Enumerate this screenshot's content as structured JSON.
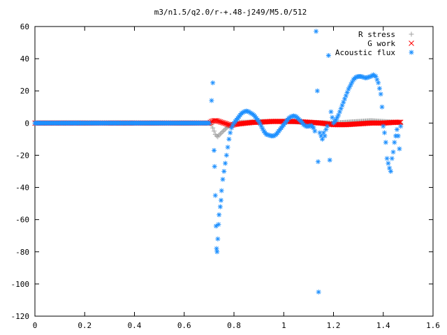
{
  "chart_data": {
    "type": "scatter",
    "title": "m3/n1.5/q2.0/r-+.48-j249/M5.0/512",
    "xlabel": "",
    "ylabel": "",
    "xlim": [
      0,
      1.6
    ],
    "ylim": [
      -120,
      60
    ],
    "xticks": [
      "0",
      "0.2",
      "0.4",
      "0.6",
      "0.8",
      "1",
      "1.2",
      "1.4",
      "1.6"
    ],
    "yticks": [
      "60",
      "40",
      "20",
      "0",
      "-20",
      "-40",
      "-60",
      "-80",
      "-100",
      "-120"
    ],
    "grid": false,
    "legend_position": "top-right",
    "series": [
      {
        "name": "R stress",
        "marker": "+",
        "color": "#a0a0a0",
        "points": [
          [
            0.0,
            0
          ],
          [
            0.1,
            0
          ],
          [
            0.2,
            0
          ],
          [
            0.3,
            0
          ],
          [
            0.4,
            0
          ],
          [
            0.5,
            0
          ],
          [
            0.6,
            0
          ],
          [
            0.7,
            0
          ],
          [
            0.71,
            -1
          ],
          [
            0.715,
            -3
          ],
          [
            0.72,
            -5
          ],
          [
            0.725,
            -7
          ],
          [
            0.73,
            -8
          ],
          [
            0.735,
            -8.5
          ],
          [
            0.74,
            -7.5
          ],
          [
            0.75,
            -6
          ],
          [
            0.76,
            -4.5
          ],
          [
            0.77,
            -3
          ],
          [
            0.78,
            -2
          ],
          [
            0.79,
            -1
          ],
          [
            0.8,
            0
          ],
          [
            0.82,
            0.5
          ],
          [
            0.85,
            0.5
          ],
          [
            0.9,
            1
          ],
          [
            1.0,
            1
          ],
          [
            1.1,
            0.5
          ],
          [
            1.2,
            0
          ],
          [
            1.3,
            1
          ],
          [
            1.35,
            1.5
          ],
          [
            1.4,
            1
          ],
          [
            1.45,
            0.5
          ],
          [
            1.47,
            0
          ]
        ]
      },
      {
        "name": "G work",
        "marker": "x",
        "color": "#ff0000",
        "points": [
          [
            0.0,
            0
          ],
          [
            0.1,
            0
          ],
          [
            0.2,
            0
          ],
          [
            0.3,
            0
          ],
          [
            0.4,
            0
          ],
          [
            0.5,
            0
          ],
          [
            0.6,
            0
          ],
          [
            0.7,
            0
          ],
          [
            0.71,
            1
          ],
          [
            0.72,
            1.5
          ],
          [
            0.73,
            1.5
          ],
          [
            0.74,
            1
          ],
          [
            0.75,
            0.5
          ],
          [
            0.76,
            0
          ],
          [
            0.77,
            -0.5
          ],
          [
            0.78,
            -1
          ],
          [
            0.79,
            -1.5
          ],
          [
            0.8,
            -1
          ],
          [
            0.82,
            -0.5
          ],
          [
            0.85,
            0
          ],
          [
            0.88,
            0.5
          ],
          [
            0.9,
            0.5
          ],
          [
            0.95,
            1
          ],
          [
            1.0,
            1
          ],
          [
            1.05,
            1
          ],
          [
            1.1,
            0.5
          ],
          [
            1.15,
            0
          ],
          [
            1.2,
            -1
          ],
          [
            1.25,
            -1
          ],
          [
            1.3,
            -0.5
          ],
          [
            1.35,
            0
          ],
          [
            1.4,
            0
          ],
          [
            1.45,
            0.5
          ],
          [
            1.47,
            0.5
          ]
        ]
      },
      {
        "name": "Acoustic flux",
        "marker": "*",
        "color": "#1e90ff",
        "points": [
          [
            0.0,
            0
          ],
          [
            0.1,
            0
          ],
          [
            0.2,
            0
          ],
          [
            0.3,
            0
          ],
          [
            0.4,
            0
          ],
          [
            0.5,
            0
          ],
          [
            0.6,
            0
          ],
          [
            0.7,
            0
          ],
          [
            0.71,
            14
          ],
          [
            0.715,
            25
          ],
          [
            0.72,
            -17
          ],
          [
            0.722,
            -27
          ],
          [
            0.725,
            -45
          ],
          [
            0.728,
            -64
          ],
          [
            0.73,
            -78
          ],
          [
            0.732,
            -80
          ],
          [
            0.735,
            -72
          ],
          [
            0.738,
            -63
          ],
          [
            0.74,
            -57
          ],
          [
            0.745,
            -52
          ],
          [
            0.748,
            -48
          ],
          [
            0.75,
            -42
          ],
          [
            0.755,
            -35
          ],
          [
            0.76,
            -30
          ],
          [
            0.765,
            -25
          ],
          [
            0.77,
            -20
          ],
          [
            0.775,
            -15
          ],
          [
            0.78,
            -10
          ],
          [
            0.785,
            -6
          ],
          [
            0.79,
            -3
          ],
          [
            0.8,
            0
          ],
          [
            0.81,
            2
          ],
          [
            0.82,
            4
          ],
          [
            0.83,
            6
          ],
          [
            0.84,
            7
          ],
          [
            0.85,
            7.5
          ],
          [
            0.86,
            7
          ],
          [
            0.87,
            6
          ],
          [
            0.88,
            5
          ],
          [
            0.89,
            3
          ],
          [
            0.9,
            1
          ],
          [
            0.91,
            -2
          ],
          [
            0.92,
            -5
          ],
          [
            0.93,
            -7
          ],
          [
            0.94,
            -7.5
          ],
          [
            0.95,
            -8
          ],
          [
            0.96,
            -8
          ],
          [
            0.97,
            -7
          ],
          [
            0.98,
            -5
          ],
          [
            0.99,
            -3
          ],
          [
            1.0,
            -1
          ],
          [
            1.01,
            1
          ],
          [
            1.02,
            3
          ],
          [
            1.03,
            4
          ],
          [
            1.04,
            4.5
          ],
          [
            1.05,
            4
          ],
          [
            1.06,
            2.5
          ],
          [
            1.07,
            1
          ],
          [
            1.08,
            -1
          ],
          [
            1.09,
            -2
          ],
          [
            1.1,
            -2
          ],
          [
            1.11,
            -1.5
          ],
          [
            1.12,
            -3
          ],
          [
            1.125,
            -5
          ],
          [
            1.13,
            57
          ],
          [
            1.135,
            20
          ],
          [
            1.138,
            -24
          ],
          [
            1.14,
            -105
          ],
          [
            1.145,
            -6
          ],
          [
            1.15,
            -8
          ],
          [
            1.155,
            -10
          ],
          [
            1.16,
            -6
          ],
          [
            1.165,
            -8
          ],
          [
            1.17,
            -4
          ],
          [
            1.175,
            -2
          ],
          [
            1.18,
            42
          ],
          [
            1.185,
            -23
          ],
          [
            1.19,
            7
          ],
          [
            1.2,
            0
          ],
          [
            1.21,
            2
          ],
          [
            1.22,
            5
          ],
          [
            1.23,
            9
          ],
          [
            1.24,
            13
          ],
          [
            1.25,
            17
          ],
          [
            1.26,
            21
          ],
          [
            1.27,
            24
          ],
          [
            1.28,
            27
          ],
          [
            1.29,
            28.5
          ],
          [
            1.3,
            29
          ],
          [
            1.31,
            29
          ],
          [
            1.32,
            28.5
          ],
          [
            1.33,
            28
          ],
          [
            1.34,
            28.5
          ],
          [
            1.35,
            29
          ],
          [
            1.36,
            30
          ],
          [
            1.37,
            29
          ],
          [
            1.38,
            25
          ],
          [
            1.39,
            18
          ],
          [
            1.395,
            10
          ],
          [
            1.4,
            -2
          ],
          [
            1.405,
            -6
          ],
          [
            1.41,
            -12
          ],
          [
            1.415,
            -22
          ],
          [
            1.42,
            -25
          ],
          [
            1.425,
            -28
          ],
          [
            1.43,
            -30
          ],
          [
            1.435,
            -22
          ],
          [
            1.44,
            -18
          ],
          [
            1.445,
            -12
          ],
          [
            1.45,
            -8
          ],
          [
            1.455,
            -4
          ],
          [
            1.46,
            -8
          ],
          [
            1.465,
            -16
          ],
          [
            1.47,
            -2
          ]
        ]
      }
    ]
  }
}
